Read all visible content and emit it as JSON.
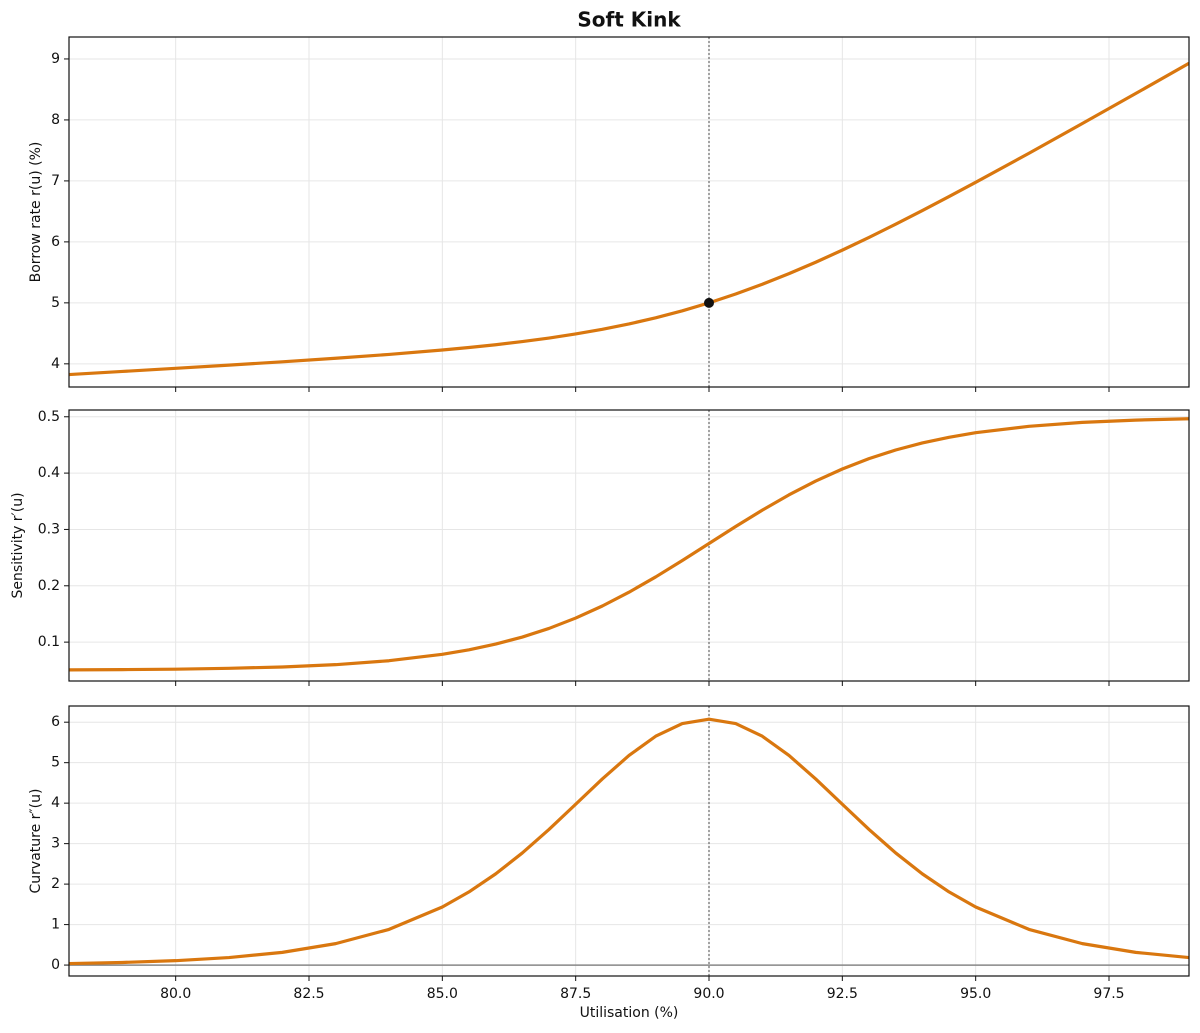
{
  "title": "Soft Kink",
  "chart_data": [
    {
      "type": "line",
      "ylabel": "Borrow rate  r(u)  (%)",
      "x": [
        78,
        79,
        80,
        81,
        82,
        83,
        84,
        85,
        85.5,
        86,
        86.5,
        87,
        87.5,
        88,
        88.5,
        89,
        89.5,
        90,
        90.5,
        91,
        91.5,
        92,
        92.5,
        93,
        93.5,
        94,
        94.5,
        95,
        96,
        97,
        98,
        99
      ],
      "series": [
        {
          "color": "#d9770f",
          "values": [
            3.824,
            3.875,
            3.926,
            3.979,
            4.033,
            4.091,
            4.154,
            4.227,
            4.268,
            4.313,
            4.365,
            4.423,
            4.49,
            4.566,
            4.654,
            4.755,
            4.87,
            5,
            5.145,
            5.305,
            5.479,
            5.666,
            5.865,
            6.073,
            6.29,
            6.513,
            6.743,
            6.977,
            7.454,
            7.941,
            8.433,
            8.929
          ]
        }
      ],
      "points": [
        {
          "x": 90,
          "y": 5,
          "color": "#111111"
        }
      ],
      "vline": 90,
      "xlim": [
        78,
        99
      ],
      "ylim": [
        3.62,
        9.36
      ],
      "xticks": [
        {
          "value": 80,
          "label": "80.0"
        },
        {
          "value": 82.5,
          "label": "82.5"
        },
        {
          "value": 85,
          "label": "85.0"
        },
        {
          "value": 87.5,
          "label": "87.5"
        },
        {
          "value": 90,
          "label": "90.0"
        },
        {
          "value": 92.5,
          "label": "92.5"
        },
        {
          "value": 95,
          "label": "95.0"
        },
        {
          "value": 97.5,
          "label": "97.5"
        }
      ],
      "yticks": [
        4,
        5,
        6,
        7,
        8,
        9
      ],
      "grid": true
    },
    {
      "type": "line",
      "ylabel": "Sensitivity  r′(u)",
      "x": [
        78,
        79,
        80,
        81,
        82,
        83,
        84,
        85,
        85.5,
        86,
        86.5,
        87,
        87.5,
        88,
        88.5,
        89,
        89.5,
        90,
        90.5,
        91,
        91.5,
        92,
        92.5,
        93,
        93.5,
        94,
        94.5,
        95,
        96,
        97,
        98,
        99
      ],
      "series": [
        {
          "color": "#d9770f",
          "values": [
            0.0507,
            0.0512,
            0.052,
            0.0535,
            0.0559,
            0.06,
            0.067,
            0.0784,
            0.0864,
            0.0965,
            0.109,
            0.1243,
            0.1427,
            0.1641,
            0.1886,
            0.2157,
            0.2448,
            0.275,
            0.3052,
            0.3343,
            0.3614,
            0.3859,
            0.4073,
            0.4257,
            0.441,
            0.4535,
            0.4636,
            0.4717,
            0.483,
            0.49,
            0.4941,
            0.4965
          ]
        }
      ],
      "vline": 90,
      "xlim": [
        78,
        99
      ],
      "ylim": [
        0.031,
        0.512
      ],
      "xticks": [
        {
          "value": 80,
          "label": "80.0"
        },
        {
          "value": 82.5,
          "label": "82.5"
        },
        {
          "value": 85,
          "label": "85.0"
        },
        {
          "value": 87.5,
          "label": "87.5"
        },
        {
          "value": 90,
          "label": "90.0"
        },
        {
          "value": 92.5,
          "label": "92.5"
        },
        {
          "value": 95,
          "label": "95.0"
        },
        {
          "value": 97.5,
          "label": "97.5"
        }
      ],
      "yticks": [
        0.1,
        0.2,
        0.3,
        0.4,
        0.5
      ],
      "grid": true
    },
    {
      "type": "line",
      "ylabel": "Curvature  r″(u)",
      "xlabel": "Utilisation (%)",
      "x": [
        78,
        79,
        80,
        81,
        82,
        83,
        84,
        85,
        85.5,
        86,
        86.5,
        87,
        87.5,
        88,
        88.5,
        89,
        89.5,
        90,
        90.5,
        91,
        91.5,
        92,
        92.5,
        93,
        93.5,
        94,
        94.5,
        95,
        96,
        97,
        98,
        99
      ],
      "series": [
        {
          "color": "#d9770f",
          "values": [
            0.037,
            0.064,
            0.109,
            0.185,
            0.314,
            0.53,
            0.881,
            1.434,
            1.807,
            2.253,
            2.77,
            3.351,
            3.973,
            4.598,
            5.178,
            5.653,
            5.966,
            6.075,
            5.966,
            5.653,
            5.178,
            4.598,
            3.973,
            3.351,
            2.77,
            2.253,
            1.807,
            1.434,
            0.881,
            0.53,
            0.314,
            0.185
          ]
        }
      ],
      "vline": 90,
      "hline": 0,
      "xlim": [
        78,
        99
      ],
      "ylim": [
        -0.27,
        6.4
      ],
      "xticks": [
        {
          "value": 80,
          "label": "80.0"
        },
        {
          "value": 82.5,
          "label": "82.5"
        },
        {
          "value": 85,
          "label": "85.0"
        },
        {
          "value": 87.5,
          "label": "87.5"
        },
        {
          "value": 90,
          "label": "90.0"
        },
        {
          "value": 92.5,
          "label": "92.5"
        },
        {
          "value": 95,
          "label": "95.0"
        },
        {
          "value": 97.5,
          "label": "97.5"
        }
      ],
      "yticks": [
        0,
        1,
        2,
        3,
        4,
        5,
        6
      ],
      "grid": true
    }
  ]
}
